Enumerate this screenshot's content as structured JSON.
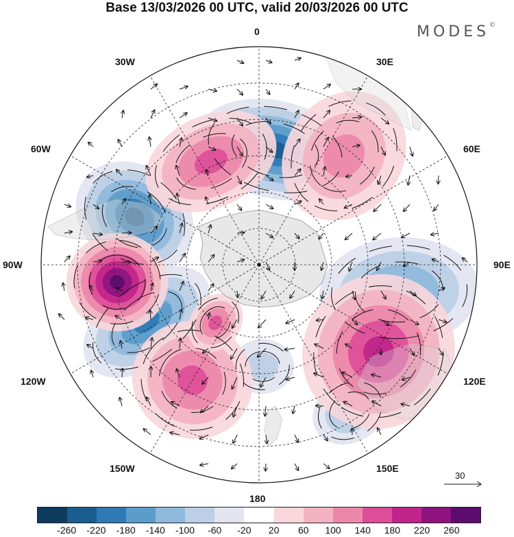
{
  "title": "Base 13/03/2026 00 UTC, valid 20/03/2026 00 UTC",
  "brand": "MODES",
  "brand_mark": "©",
  "longitude_labels": {
    "lon_0": "0",
    "lon_30e": "30E",
    "lon_60e": "60E",
    "lon_90e": "90E",
    "lon_120e": "120E",
    "lon_150e": "150E",
    "lon_180": "180",
    "lon_150w": "150W",
    "lon_120w": "120W",
    "lon_90w": "90W",
    "lon_60w": "60W",
    "lon_30w": "30W"
  },
  "reference_vector": {
    "value": "30"
  },
  "colorbar": {
    "colors": [
      "#0d3b5e",
      "#1a5d8f",
      "#2f7ab5",
      "#5b9ccb",
      "#8fb9dc",
      "#bccfe6",
      "#e2e4f0",
      "#ffffff",
      "#f9d7dc",
      "#f3b3c2",
      "#ec88aa",
      "#dd4e98",
      "#c0248a",
      "#8e137f",
      "#5b0c6e"
    ],
    "ticks": [
      "-260",
      "-220",
      "-180",
      "-140",
      "-100",
      "-60",
      "-20",
      "20",
      "60",
      "100",
      "140",
      "180",
      "220",
      "260"
    ]
  },
  "anomalies": [
    {
      "id": "blue-0",
      "lon": 8,
      "colat": 48,
      "rlon": 11,
      "rcolat": 33,
      "tilt": 95,
      "value": -230
    },
    {
      "id": "blue-90w",
      "lon": -69,
      "colat": 55,
      "rlon": 10,
      "rcolat": 26,
      "tilt": 16,
      "value": -230
    },
    {
      "id": "blue-120w",
      "lon": -117,
      "colat": 52,
      "rlon": 9,
      "rcolat": 30,
      "tilt": -10,
      "value": -190
    },
    {
      "id": "blue-100e",
      "lon": 101,
      "colat": 59,
      "rlon": 10,
      "rcolat": 33,
      "tilt": -15,
      "value": -140
    },
    {
      "id": "blue-145e",
      "lon": 148,
      "colat": 71,
      "rlon": 6,
      "rcolat": 13,
      "tilt": 0,
      "value": -110
    },
    {
      "id": "blue-180",
      "lon": 178,
      "colat": 42,
      "rlon": 7,
      "rcolat": 13,
      "tilt": 90,
      "value": -70
    },
    {
      "id": "pink-30w",
      "lon": -25,
      "colat": 47,
      "rlon": 16,
      "rcolat": 19,
      "tilt": 0,
      "value": 160
    },
    {
      "id": "pink-40e",
      "lon": 38,
      "colat": 57,
      "rlon": 13,
      "rcolat": 24,
      "tilt": 90,
      "value": 120
    },
    {
      "id": "pink-90w",
      "lon": -97,
      "colat": 59,
      "rlon": 9,
      "rcolat": 21,
      "tilt": 10,
      "value": 260
    },
    {
      "id": "pink-120e",
      "lon": 126,
      "colat": 61,
      "rlon": 14,
      "rcolat": 31,
      "tilt": 0,
      "value": 180
    },
    {
      "id": "pink-150w",
      "lon": -150,
      "colat": 55,
      "rlon": 12,
      "rcolat": 24,
      "tilt": 0,
      "value": 160
    },
    {
      "id": "pink-135w",
      "lon": -143,
      "colat": 30,
      "rlon": 9,
      "rcolat": 13,
      "tilt": 0,
      "value": 140
    }
  ]
}
